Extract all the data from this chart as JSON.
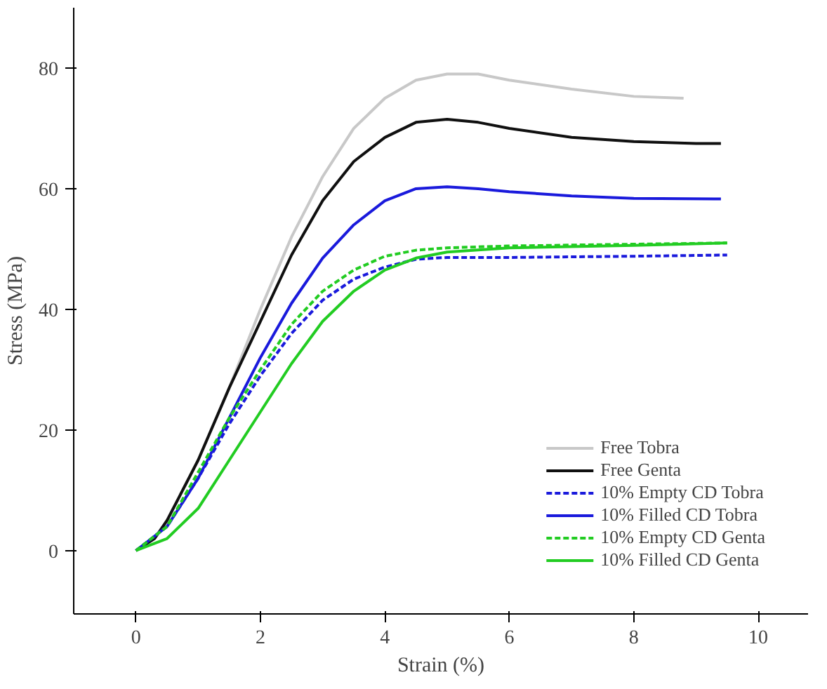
{
  "chart_data": {
    "type": "line",
    "xlabel": "Strain (%)",
    "ylabel": "Stress (MPa)",
    "xlim": [
      -1,
      10.8
    ],
    "ylim": [
      -10.5,
      90
    ],
    "xticks": [
      0,
      2,
      4,
      6,
      8,
      10
    ],
    "yticks": [
      0,
      20,
      40,
      60,
      80
    ],
    "grid": false,
    "legend": "bottom right",
    "marker": "none",
    "series": [
      {
        "name": "Free Tobra",
        "color": "#c8c8c8",
        "line_style": "solid",
        "x": [
          0,
          0.3,
          0.5,
          1,
          1.5,
          2,
          2.5,
          3,
          3.5,
          4,
          4.5,
          5,
          5.5,
          6,
          7,
          8,
          8.8
        ],
        "values": [
          0,
          2,
          5,
          15,
          27,
          40,
          52,
          62,
          70,
          75,
          78,
          79,
          79,
          78,
          76.5,
          75.3,
          75
        ]
      },
      {
        "name": "Free Genta",
        "color": "#101010",
        "line_style": "solid",
        "x": [
          0,
          0.3,
          0.5,
          1,
          1.5,
          2,
          2.5,
          3,
          3.5,
          4,
          4.5,
          5,
          5.5,
          6,
          7,
          8,
          9,
          9.4
        ],
        "values": [
          0,
          2,
          5,
          15,
          27,
          38,
          49,
          58,
          64.5,
          68.5,
          71,
          71.5,
          71,
          70,
          68.5,
          67.8,
          67.5,
          67.5
        ]
      },
      {
        "name": "10% Empty CD Tobra",
        "color": "#1a1adc",
        "line_style": "dashed",
        "x": [
          0,
          0.5,
          1,
          1.5,
          2,
          2.5,
          3,
          3.5,
          4,
          4.5,
          5,
          6,
          8,
          9.5
        ],
        "values": [
          0,
          4,
          12,
          21,
          29,
          36,
          41.5,
          45,
          47,
          48.3,
          48.6,
          48.6,
          48.8,
          49
        ]
      },
      {
        "name": "10% Filled CD Tobra",
        "color": "#1a1adc",
        "line_style": "solid",
        "x": [
          0,
          0.5,
          1,
          1.5,
          2,
          2.5,
          3,
          3.5,
          4,
          4.5,
          5,
          5.5,
          6,
          7,
          8,
          9.4
        ],
        "values": [
          0,
          4,
          12,
          22,
          32,
          41,
          48.5,
          54,
          58,
          60,
          60.3,
          60,
          59.5,
          58.8,
          58.4,
          58.3
        ]
      },
      {
        "name": "10% Empty CD Genta",
        "color": "#22cc22",
        "line_style": "dashed",
        "x": [
          0,
          0.5,
          1,
          1.5,
          2,
          2.5,
          3,
          3.5,
          4,
          4.5,
          5,
          6,
          8,
          9.5
        ],
        "values": [
          0,
          4,
          13,
          22,
          30,
          37.5,
          43,
          46.5,
          48.8,
          49.8,
          50.2,
          50.5,
          50.8,
          51
        ]
      },
      {
        "name": "10% Filled CD Genta",
        "color": "#22cc22",
        "line_style": "solid",
        "x": [
          0,
          0.5,
          1,
          1.5,
          2,
          2.5,
          3,
          3.5,
          4,
          4.5,
          5,
          6,
          8,
          9.5
        ],
        "values": [
          0,
          2,
          7,
          15,
          23,
          31,
          38,
          43,
          46.5,
          48.5,
          49.5,
          50.2,
          50.6,
          51
        ]
      }
    ]
  }
}
